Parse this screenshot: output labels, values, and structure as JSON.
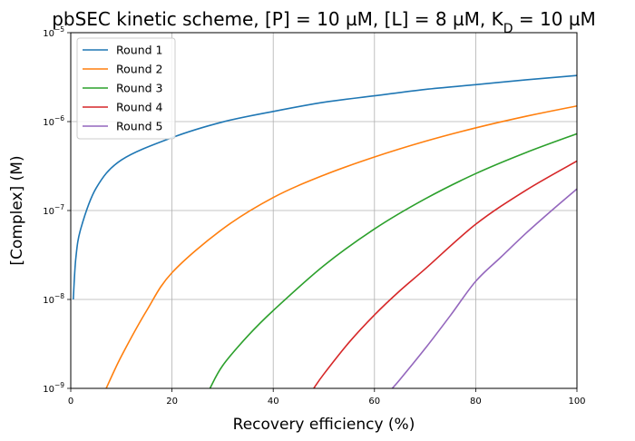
{
  "chart_data": {
    "type": "line",
    "title": "pbSEC kinetic scheme, [P] = 10 µM, [L] = 8 µM, K",
    "title_sub": "D",
    "title_tail": " = 10 µM",
    "xlabel": "Recovery efficiency (%)",
    "ylabel": "[Complex] (M)",
    "xlim": [
      0,
      100
    ],
    "ylim": [
      1e-09,
      1e-05
    ],
    "yscale": "log",
    "grid": true,
    "legend_position": "upper-left",
    "x_ticks": [
      0,
      20,
      40,
      60,
      80,
      100
    ],
    "y_ticks": [
      {
        "value": 1e-09,
        "base": "10",
        "exp": "−9"
      },
      {
        "value": 1e-08,
        "base": "10",
        "exp": "−8"
      },
      {
        "value": 1e-07,
        "base": "10",
        "exp": "−7"
      },
      {
        "value": 1e-06,
        "base": "10",
        "exp": "−6"
      },
      {
        "value": 1e-05,
        "base": "10",
        "exp": "−5"
      }
    ],
    "series": [
      {
        "name": "Round 1",
        "color": "#1f77b4",
        "x": [
          0.5,
          1,
          2,
          5,
          10,
          20,
          30,
          40,
          50,
          60,
          70,
          80,
          90,
          100
        ],
        "y": [
          1e-08,
          2.9e-08,
          6.3e-08,
          1.78e-07,
          3.7e-07,
          6.6e-07,
          9.9e-07,
          1.3e-06,
          1.65e-06,
          1.95e-06,
          2.3e-06,
          2.6e-06,
          2.95e-06,
          3.3e-06
        ]
      },
      {
        "name": "Round 2",
        "color": "#ff7f0e",
        "x": [
          7,
          10,
          15,
          20,
          30,
          40,
          50,
          60,
          70,
          80,
          90,
          100
        ],
        "y": [
          1e-09,
          2.3e-09,
          7.5e-09,
          2e-08,
          6.2e-08,
          1.4e-07,
          2.5e-07,
          4e-07,
          6e-07,
          8.5e-07,
          1.15e-06,
          1.5e-06
        ]
      },
      {
        "name": "Round 3",
        "color": "#2ca02c",
        "x": [
          27.5,
          30,
          35,
          40,
          50,
          60,
          70,
          80,
          90,
          100
        ],
        "y": [
          1e-09,
          1.8e-09,
          3.9e-09,
          7.5e-09,
          2.4e-08,
          6.2e-08,
          1.35e-07,
          2.6e-07,
          4.5e-07,
          7.3e-07
        ]
      },
      {
        "name": "Round 4",
        "color": "#d62728",
        "x": [
          48,
          50,
          55,
          60,
          65,
          70,
          80,
          90,
          100
        ],
        "y": [
          1e-09,
          1.45e-09,
          3.3e-09,
          6.7e-09,
          1.25e-08,
          2.2e-08,
          7e-08,
          1.7e-07,
          3.6e-07
        ]
      },
      {
        "name": "Round 5",
        "color": "#9467bd",
        "x": [
          63.5,
          65,
          70,
          75,
          80,
          85,
          90,
          95,
          100
        ],
        "y": [
          1e-09,
          1.25e-09,
          2.8e-09,
          6.6e-09,
          1.6e-08,
          3e-08,
          5.6e-08,
          1e-07,
          1.75e-07
        ]
      }
    ]
  }
}
